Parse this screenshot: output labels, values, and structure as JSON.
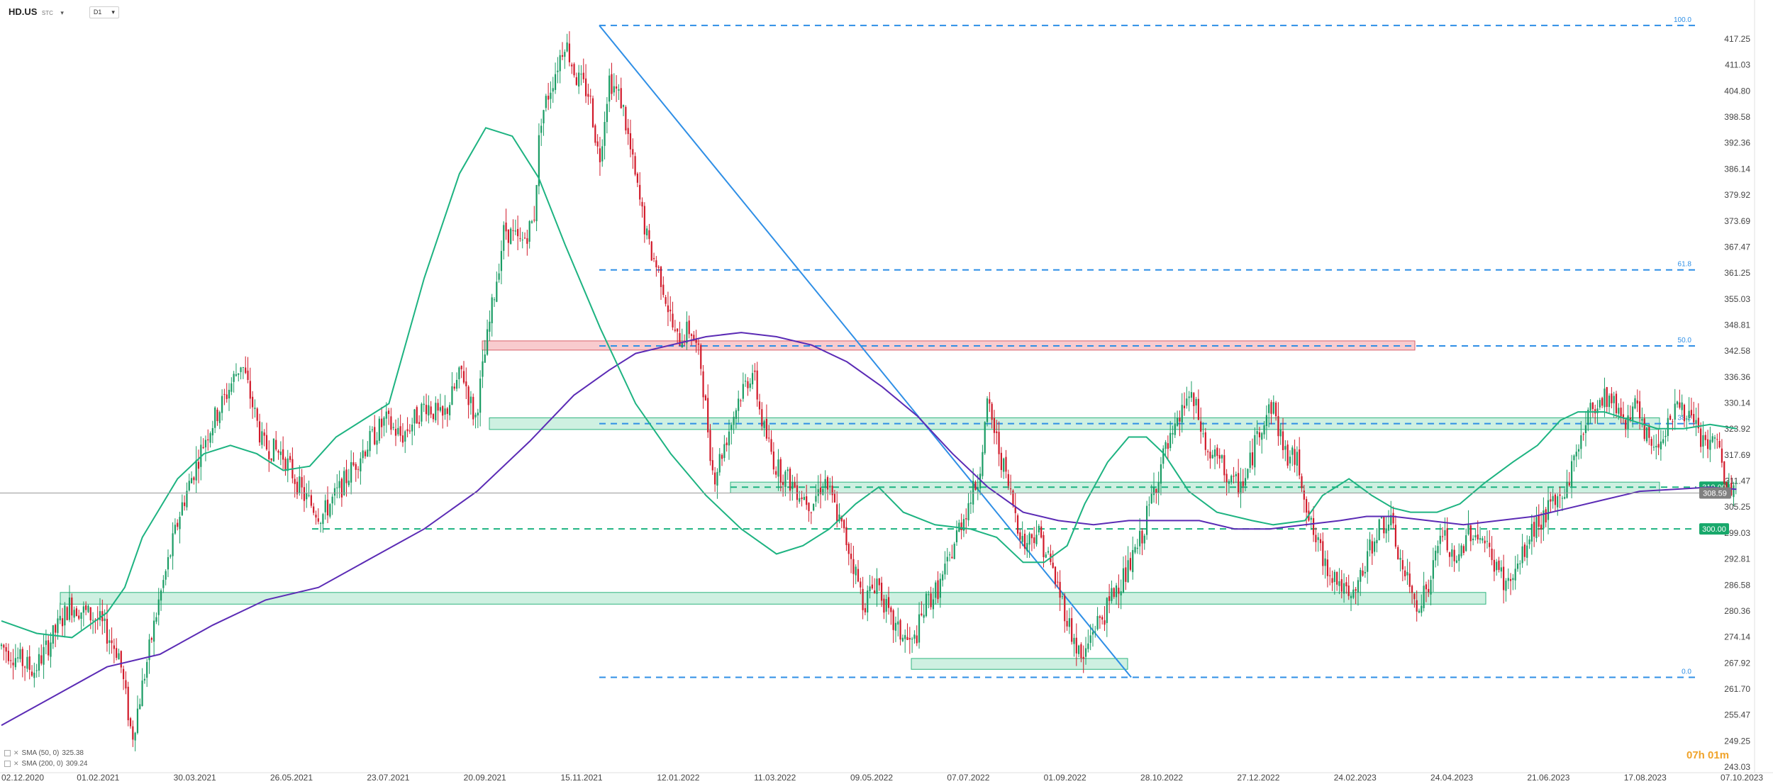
{
  "header": {
    "symbol": "HD.US",
    "symbol_sub": "STC",
    "timeframe": "D1",
    "caret": "▾"
  },
  "legend": [
    {
      "label": "SMA (50, 0)",
      "value": "325.38",
      "color": "#1db381"
    },
    {
      "label": "SMA (200, 0)",
      "value": "309.24",
      "color": "#5b2bb5"
    }
  ],
  "timer": "07h 01m",
  "colors": {
    "up": "#1a9c64",
    "down": "#d11a2a",
    "sma50": "#1db381",
    "sma200": "#5b2bb5",
    "fib": "#2f8fe6",
    "support": "#1db381",
    "resistance_zone": "#f3a1a5",
    "support_zone": "#a6e3c8",
    "price_badge": "#808080",
    "level_badge": "#18a86b"
  },
  "chart_data": {
    "type": "candlestick",
    "title": "",
    "ylim": [
      243.03,
      423.0
    ],
    "y_ticks": [
      417.25,
      411.03,
      404.8,
      398.58,
      392.36,
      386.14,
      379.92,
      373.69,
      367.47,
      361.25,
      355.03,
      348.81,
      342.58,
      336.36,
      330.14,
      323.92,
      317.69,
      311.47,
      305.25,
      299.03,
      292.81,
      286.58,
      280.36,
      274.14,
      267.92,
      261.7,
      255.47,
      249.25,
      243.03
    ],
    "x_ticks": [
      "02.12.2020",
      "01.02.2021",
      "30.03.2021",
      "26.05.2021",
      "23.07.2021",
      "20.09.2021",
      "15.11.2021",
      "12.01.2022",
      "11.03.2022",
      "09.05.2022",
      "07.07.2022",
      "01.09.2022",
      "28.10.2022",
      "27.12.2022",
      "24.02.2023",
      "24.04.2023",
      "21.06.2023",
      "17.08.2023",
      "07.10.2023"
    ],
    "current_price": "308.59",
    "price_path": [
      [
        0,
        272
      ],
      [
        20,
        266
      ],
      [
        42,
        282
      ],
      [
        60,
        278
      ],
      [
        72,
        270
      ],
      [
        80,
        250
      ],
      [
        88,
        266
      ],
      [
        96,
        282
      ],
      [
        110,
        305
      ],
      [
        125,
        322
      ],
      [
        135,
        330
      ],
      [
        147,
        340
      ],
      [
        160,
        320
      ],
      [
        172,
        318
      ],
      [
        185,
        308
      ],
      [
        196,
        303
      ],
      [
        208,
        310
      ],
      [
        220,
        318
      ],
      [
        235,
        326
      ],
      [
        245,
        322
      ],
      [
        260,
        330
      ],
      [
        270,
        326
      ],
      [
        282,
        338
      ],
      [
        290,
        326
      ],
      [
        300,
        352
      ],
      [
        308,
        372
      ],
      [
        318,
        368
      ],
      [
        326,
        374
      ],
      [
        330,
        398
      ],
      [
        338,
        408
      ],
      [
        345,
        417
      ],
      [
        352,
        408
      ],
      [
        360,
        404
      ],
      [
        366,
        388
      ],
      [
        372,
        408
      ],
      [
        380,
        402
      ],
      [
        388,
        384
      ],
      [
        396,
        368
      ],
      [
        404,
        360
      ],
      [
        413,
        345
      ],
      [
        422,
        348
      ],
      [
        428,
        340
      ],
      [
        436,
        312
      ],
      [
        444,
        322
      ],
      [
        452,
        332
      ],
      [
        460,
        338
      ],
      [
        466,
        325
      ],
      [
        474,
        315
      ],
      [
        486,
        310
      ],
      [
        496,
        306
      ],
      [
        504,
        312
      ],
      [
        512,
        303
      ],
      [
        520,
        294
      ],
      [
        528,
        282
      ],
      [
        536,
        288
      ],
      [
        544,
        278
      ],
      [
        550,
        275
      ],
      [
        558,
        272
      ],
      [
        566,
        282
      ],
      [
        574,
        286
      ],
      [
        580,
        292
      ],
      [
        586,
        300
      ],
      [
        592,
        306
      ],
      [
        598,
        312
      ],
      [
        604,
        330
      ],
      [
        610,
        320
      ],
      [
        618,
        308
      ],
      [
        626,
        296
      ],
      [
        634,
        300
      ],
      [
        642,
        292
      ],
      [
        650,
        282
      ],
      [
        656,
        274
      ],
      [
        662,
        268
      ],
      [
        668,
        276
      ],
      [
        676,
        280
      ],
      [
        682,
        286
      ],
      [
        690,
        290
      ],
      [
        698,
        298
      ],
      [
        706,
        310
      ],
      [
        712,
        318
      ],
      [
        718,
        322
      ],
      [
        726,
        332
      ],
      [
        732,
        328
      ],
      [
        738,
        318
      ],
      [
        746,
        316
      ],
      [
        754,
        310
      ],
      [
        762,
        312
      ],
      [
        770,
        324
      ],
      [
        778,
        330
      ],
      [
        786,
        318
      ],
      [
        794,
        316
      ],
      [
        802,
        300
      ],
      [
        810,
        292
      ],
      [
        818,
        288
      ],
      [
        826,
        282
      ],
      [
        834,
        290
      ],
      [
        842,
        300
      ],
      [
        850,
        302
      ],
      [
        858,
        290
      ],
      [
        866,
        282
      ],
      [
        874,
        286
      ],
      [
        882,
        300
      ],
      [
        890,
        290
      ],
      [
        898,
        300
      ],
      [
        906,
        298
      ],
      [
        914,
        292
      ],
      [
        922,
        286
      ],
      [
        930,
        292
      ],
      [
        938,
        300
      ],
      [
        946,
        304
      ],
      [
        952,
        306
      ],
      [
        958,
        310
      ],
      [
        964,
        318
      ],
      [
        970,
        326
      ],
      [
        976,
        330
      ],
      [
        982,
        332
      ],
      [
        988,
        330
      ],
      [
        994,
        326
      ],
      [
        1000,
        330
      ],
      [
        1006,
        322
      ],
      [
        1014,
        320
      ],
      [
        1020,
        326
      ],
      [
        1028,
        330
      ],
      [
        1034,
        326
      ],
      [
        1040,
        322
      ],
      [
        1046,
        320
      ],
      [
        1052,
        320
      ],
      [
        1056,
        308
      ],
      [
        1062,
        310
      ]
    ],
    "sma50_path": [
      [
        0,
        278
      ],
      [
        20,
        275
      ],
      [
        40,
        274
      ],
      [
        60,
        280
      ],
      [
        70,
        286
      ],
      [
        80,
        298
      ],
      [
        100,
        312
      ],
      [
        115,
        318
      ],
      [
        130,
        320
      ],
      [
        145,
        318
      ],
      [
        160,
        314
      ],
      [
        175,
        315
      ],
      [
        190,
        322
      ],
      [
        205,
        326
      ],
      [
        220,
        330
      ],
      [
        240,
        360
      ],
      [
        260,
        385
      ],
      [
        275,
        396
      ],
      [
        290,
        394
      ],
      [
        305,
        384
      ],
      [
        320,
        368
      ],
      [
        340,
        348
      ],
      [
        360,
        330
      ],
      [
        380,
        318
      ],
      [
        400,
        308
      ],
      [
        420,
        300
      ],
      [
        440,
        294
      ],
      [
        455,
        296
      ],
      [
        470,
        300
      ],
      [
        485,
        306
      ],
      [
        498,
        310
      ],
      [
        512,
        304
      ],
      [
        530,
        301
      ],
      [
        550,
        300
      ],
      [
        565,
        298
      ],
      [
        580,
        292
      ],
      [
        592,
        292
      ],
      [
        605,
        296
      ],
      [
        615,
        306
      ],
      [
        628,
        316
      ],
      [
        640,
        322
      ],
      [
        650,
        322
      ],
      [
        660,
        318
      ],
      [
        674,
        309
      ],
      [
        690,
        304
      ],
      [
        710,
        302
      ],
      [
        722,
        301
      ],
      [
        740,
        302
      ],
      [
        750,
        308
      ],
      [
        765,
        312
      ],
      [
        778,
        308
      ],
      [
        790,
        305
      ],
      [
        800,
        304
      ],
      [
        815,
        304
      ],
      [
        828,
        306
      ],
      [
        842,
        311
      ],
      [
        858,
        316
      ],
      [
        872,
        320
      ],
      [
        885,
        326
      ],
      [
        895,
        328
      ],
      [
        910,
        328
      ],
      [
        925,
        326
      ],
      [
        940,
        324
      ],
      [
        955,
        324
      ],
      [
        970,
        325
      ],
      [
        985,
        324
      ]
    ],
    "sma200_path": [
      [
        0,
        253
      ],
      [
        30,
        260
      ],
      [
        60,
        267
      ],
      [
        90,
        270
      ],
      [
        120,
        277
      ],
      [
        150,
        283
      ],
      [
        180,
        286
      ],
      [
        210,
        293
      ],
      [
        240,
        300
      ],
      [
        270,
        309
      ],
      [
        300,
        321
      ],
      [
        325,
        332
      ],
      [
        345,
        338
      ],
      [
        360,
        342
      ],
      [
        380,
        344
      ],
      [
        400,
        346
      ],
      [
        420,
        347
      ],
      [
        440,
        346
      ],
      [
        460,
        344
      ],
      [
        480,
        340
      ],
      [
        500,
        334
      ],
      [
        520,
        327
      ],
      [
        540,
        318
      ],
      [
        560,
        310
      ],
      [
        580,
        304
      ],
      [
        600,
        302
      ],
      [
        620,
        301
      ],
      [
        640,
        302
      ],
      [
        660,
        302
      ],
      [
        680,
        302
      ],
      [
        700,
        300
      ],
      [
        720,
        300
      ],
      [
        740,
        301
      ],
      [
        760,
        302
      ],
      [
        775,
        303
      ],
      [
        790,
        303
      ],
      [
        810,
        302
      ],
      [
        830,
        301
      ],
      [
        850,
        302
      ],
      [
        870,
        303
      ],
      [
        890,
        305
      ],
      [
        910,
        307
      ],
      [
        930,
        309
      ],
      [
        950,
        309.5
      ],
      [
        970,
        310
      ],
      [
        985,
        309.5
      ]
    ],
    "trendline": {
      "from": [
        "15.11.2021",
        420.5
      ],
      "to": [
        "20.09.2022",
        264.5
      ]
    },
    "fibonacci": [
      {
        "label": "100.0",
        "value": 420.5
      },
      {
        "label": "61.8",
        "value": 362.0
      },
      {
        "label": "50.0",
        "value": 343.8
      },
      {
        "label": "38.2",
        "value": 325.2
      },
      {
        "label": "0.0",
        "value": 264.5
      }
    ],
    "horizontal_levels": [
      {
        "label": "310.00",
        "value": 310.0
      },
      {
        "label": "300.00",
        "value": 300.0
      }
    ],
    "zones": [
      {
        "kind": "resistance",
        "low": 342.8,
        "high": 345.0
      },
      {
        "kind": "support",
        "low": 323.8,
        "high": 326.6
      },
      {
        "kind": "support",
        "low": 308.6,
        "high": 311.2
      },
      {
        "kind": "support",
        "low": 282.0,
        "high": 284.8
      },
      {
        "kind": "support",
        "low": 266.4,
        "high": 269.0
      }
    ]
  }
}
